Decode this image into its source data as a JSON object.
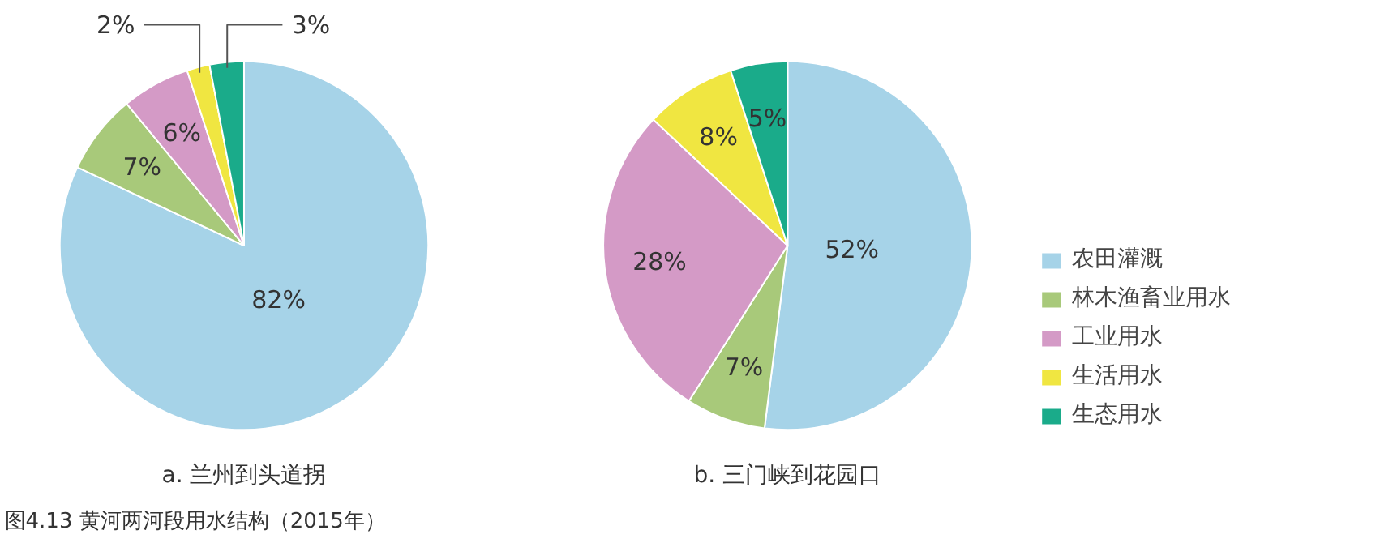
{
  "chart_data": [
    {
      "type": "pie",
      "title": "a. 兰州到头道拐",
      "categories": [
        "农田灌溉",
        "林木渔畜业用水",
        "工业用水",
        "生活用水",
        "生态用水"
      ],
      "values": [
        82,
        7,
        6,
        2,
        3
      ],
      "value_labels": [
        "82%",
        "7%",
        "6%",
        "2%",
        "3%"
      ],
      "colors": [
        "#a6d3e8",
        "#a8c97a",
        "#d49ac6",
        "#f0e641",
        "#1aab8a"
      ],
      "legend": "right",
      "annotations": [
        "图4.13  黄河两河段用水结构（2015年）"
      ]
    },
    {
      "type": "pie",
      "title": "b. 三门峡到花园口",
      "values": [
        52,
        7,
        28,
        8,
        5
      ],
      "value_labels": [
        "52%",
        "7%",
        "28%",
        "8%",
        "5%"
      ],
      "colors": [
        "#a6d3e8",
        "#a8c97a",
        "#d49ac6",
        "#f0e641",
        "#1aab8a"
      ]
    }
  ]
}
